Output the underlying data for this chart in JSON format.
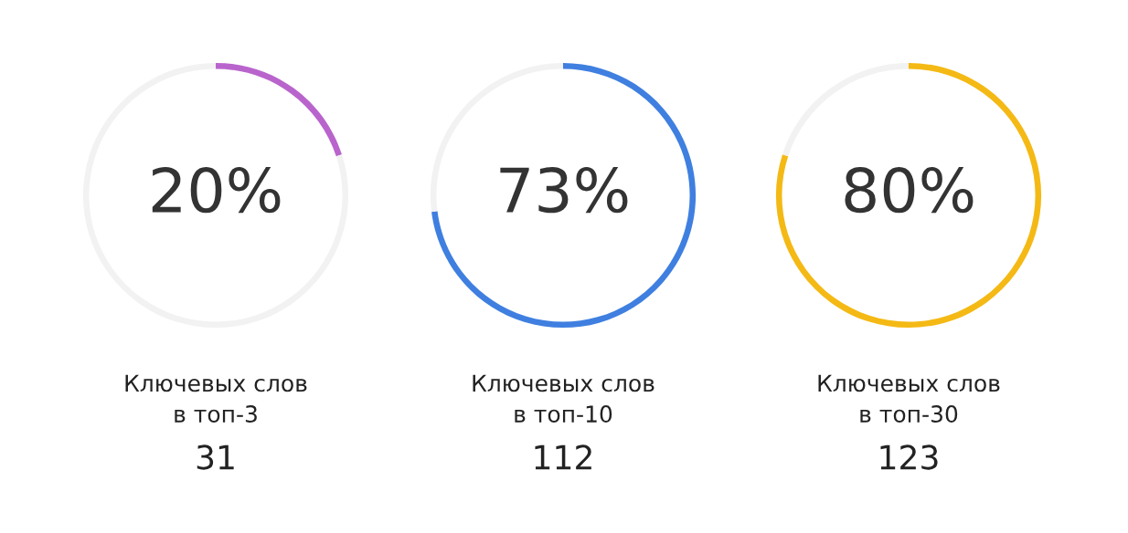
{
  "chart_data": [
    {
      "type": "donut",
      "categories": [
        null,
        null
      ],
      "values": [
        20,
        80
      ],
      "colors": [
        "#b964cc",
        "#f2f2f2"
      ],
      "value_labels": [
        "20%",
        null
      ],
      "annotations": [
        "Ключевых слов\nв топ-3",
        "31"
      ]
    },
    {
      "type": "donut",
      "categories": [
        null,
        null
      ],
      "values": [
        73,
        27
      ],
      "colors": [
        "#3f7fe0",
        "#f2f2f2"
      ],
      "value_labels": [
        "73%",
        null
      ],
      "annotations": [
        "Ключевых слов\nв топ-10",
        "112"
      ]
    },
    {
      "type": "donut",
      "categories": [
        null,
        null
      ],
      "values": [
        80,
        20
      ],
      "colors": [
        "#f4b914",
        "#f2f2f2"
      ],
      "value_labels": [
        "80%",
        null
      ],
      "annotations": [
        "Ключевых слов\nв топ-30",
        "123"
      ]
    }
  ]
}
